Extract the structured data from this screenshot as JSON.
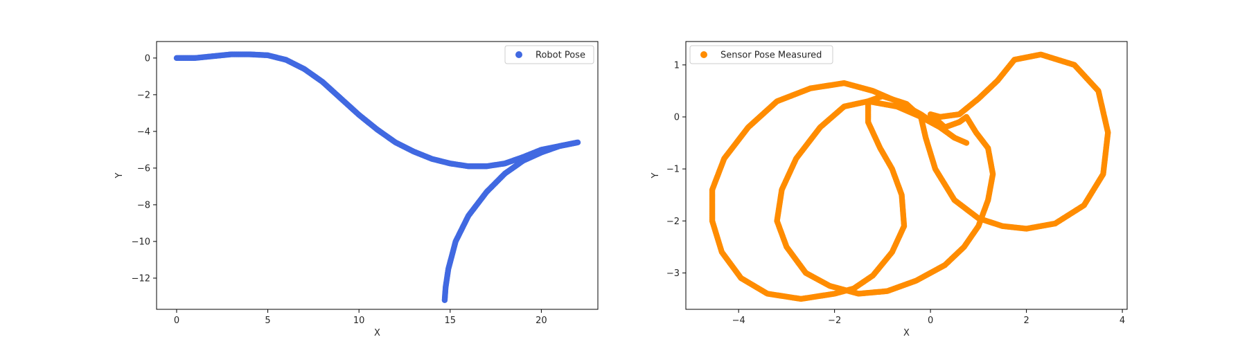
{
  "chart_data": [
    {
      "type": "scatter",
      "title": "",
      "xlabel": "X",
      "ylabel": "Y",
      "xlim": [
        -1.1,
        23.1
      ],
      "ylim": [
        -13.7,
        0.9
      ],
      "xticks": [
        0,
        5,
        10,
        15,
        20
      ],
      "yticks": [
        0,
        -2,
        -4,
        -6,
        -8,
        -10,
        -12
      ],
      "xtick_labels": [
        "0",
        "5",
        "10",
        "15",
        "20"
      ],
      "ytick_labels": [
        "0",
        "−2",
        "−4",
        "−6",
        "−8",
        "−10",
        "−12"
      ],
      "legend_placement": "upper-right",
      "grid": false,
      "series": [
        {
          "name": "Robot Pose",
          "color": "#4169e1",
          "points": [
            [
              0,
              0
            ],
            [
              1,
              0.0
            ],
            [
              2,
              0.1
            ],
            [
              3,
              0.2
            ],
            [
              4,
              0.2
            ],
            [
              5,
              0.15
            ],
            [
              6,
              -0.1
            ],
            [
              7,
              -0.6
            ],
            [
              8,
              -1.3
            ],
            [
              9,
              -2.2
            ],
            [
              10,
              -3.1
            ],
            [
              11,
              -3.9
            ],
            [
              12,
              -4.6
            ],
            [
              13,
              -5.1
            ],
            [
              14,
              -5.5
            ],
            [
              15,
              -5.75
            ],
            [
              16,
              -5.9
            ],
            [
              17,
              -5.9
            ],
            [
              18,
              -5.75
            ],
            [
              19,
              -5.4
            ],
            [
              20,
              -5.0
            ],
            [
              21,
              -4.8
            ],
            [
              22,
              -4.6
            ],
            [
              21,
              -4.8
            ],
            [
              20,
              -5.15
            ],
            [
              19,
              -5.6
            ],
            [
              18,
              -6.3
            ],
            [
              17,
              -7.3
            ],
            [
              16,
              -8.6
            ],
            [
              15.3,
              -10.0
            ],
            [
              14.9,
              -11.5
            ],
            [
              14.75,
              -12.5
            ],
            [
              14.7,
              -13.2
            ]
          ]
        }
      ]
    },
    {
      "type": "scatter",
      "title": "",
      "xlabel": "X",
      "ylabel": "Y",
      "xlim": [
        -5.1,
        4.1
      ],
      "ylim": [
        -3.7,
        1.45
      ],
      "xticks": [
        -4,
        -2,
        0,
        2,
        4
      ],
      "yticks": [
        1,
        0,
        -1,
        -2,
        -3
      ],
      "xtick_labels": [
        "−4",
        "−2",
        "0",
        "2",
        "4"
      ],
      "ytick_labels": [
        "1",
        "0",
        "−1",
        "−2",
        "−3"
      ],
      "legend_placement": "upper-left",
      "grid": false,
      "series": [
        {
          "name": "Sensor Pose Measured",
          "color": "#ff8c00",
          "points": [
            [
              0.75,
              -0.5
            ],
            [
              0.5,
              -0.4
            ],
            [
              0.2,
              -0.2
            ],
            [
              -0.2,
              0.05
            ],
            [
              -0.7,
              0.3
            ],
            [
              -1.2,
              0.5
            ],
            [
              -1.8,
              0.65
            ],
            [
              -2.5,
              0.55
            ],
            [
              -3.2,
              0.3
            ],
            [
              -3.8,
              -0.2
            ],
            [
              -4.3,
              -0.8
            ],
            [
              -4.55,
              -1.4
            ],
            [
              -4.55,
              -2.0
            ],
            [
              -4.35,
              -2.6
            ],
            [
              -3.95,
              -3.1
            ],
            [
              -3.4,
              -3.4
            ],
            [
              -2.7,
              -3.5
            ],
            [
              -2.0,
              -3.4
            ],
            [
              -1.6,
              -3.3
            ],
            [
              -1.2,
              -3.05
            ],
            [
              -0.8,
              -2.6
            ],
            [
              -0.55,
              -2.1
            ],
            [
              -0.6,
              -1.5
            ],
            [
              -0.8,
              -1.0
            ],
            [
              -1.05,
              -0.6
            ],
            [
              -1.3,
              -0.1
            ],
            [
              -1.3,
              0.3
            ],
            [
              -1.0,
              0.4
            ],
            [
              -0.5,
              0.25
            ],
            [
              -0.2,
              0.0
            ],
            [
              -0.1,
              -0.4
            ],
            [
              0.1,
              -1.0
            ],
            [
              0.5,
              -1.6
            ],
            [
              1.0,
              -1.95
            ],
            [
              1.5,
              -2.1
            ],
            [
              2.0,
              -2.15
            ],
            [
              2.6,
              -2.05
            ],
            [
              3.2,
              -1.7
            ],
            [
              3.6,
              -1.1
            ],
            [
              3.7,
              -0.3
            ],
            [
              3.5,
              0.5
            ],
            [
              3.0,
              1.0
            ],
            [
              2.3,
              1.2
            ],
            [
              1.75,
              1.1
            ],
            [
              1.4,
              0.7
            ],
            [
              1.0,
              0.35
            ],
            [
              0.6,
              0.05
            ],
            [
              0.2,
              0.0
            ],
            [
              0.0,
              0.05
            ],
            [
              0.3,
              -0.2
            ],
            [
              0.6,
              -0.1
            ],
            [
              0.75,
              0.0
            ],
            [
              0.95,
              -0.3
            ],
            [
              1.2,
              -0.6
            ],
            [
              1.3,
              -1.1
            ],
            [
              1.2,
              -1.6
            ],
            [
              1.0,
              -2.1
            ],
            [
              0.7,
              -2.5
            ],
            [
              0.3,
              -2.85
            ],
            [
              -0.3,
              -3.15
            ],
            [
              -0.9,
              -3.35
            ],
            [
              -1.5,
              -3.4
            ],
            [
              -2.1,
              -3.25
            ],
            [
              -2.6,
              -3.0
            ],
            [
              -3.0,
              -2.5
            ],
            [
              -3.2,
              -2.0
            ],
            [
              -3.1,
              -1.4
            ],
            [
              -2.8,
              -0.8
            ],
            [
              -2.3,
              -0.2
            ],
            [
              -1.8,
              0.2
            ],
            [
              -1.3,
              0.3
            ],
            [
              -0.7,
              0.2
            ],
            [
              -0.2,
              0.0
            ],
            [
              0.2,
              -0.2
            ],
            [
              0.5,
              -0.4
            ]
          ]
        }
      ]
    }
  ]
}
